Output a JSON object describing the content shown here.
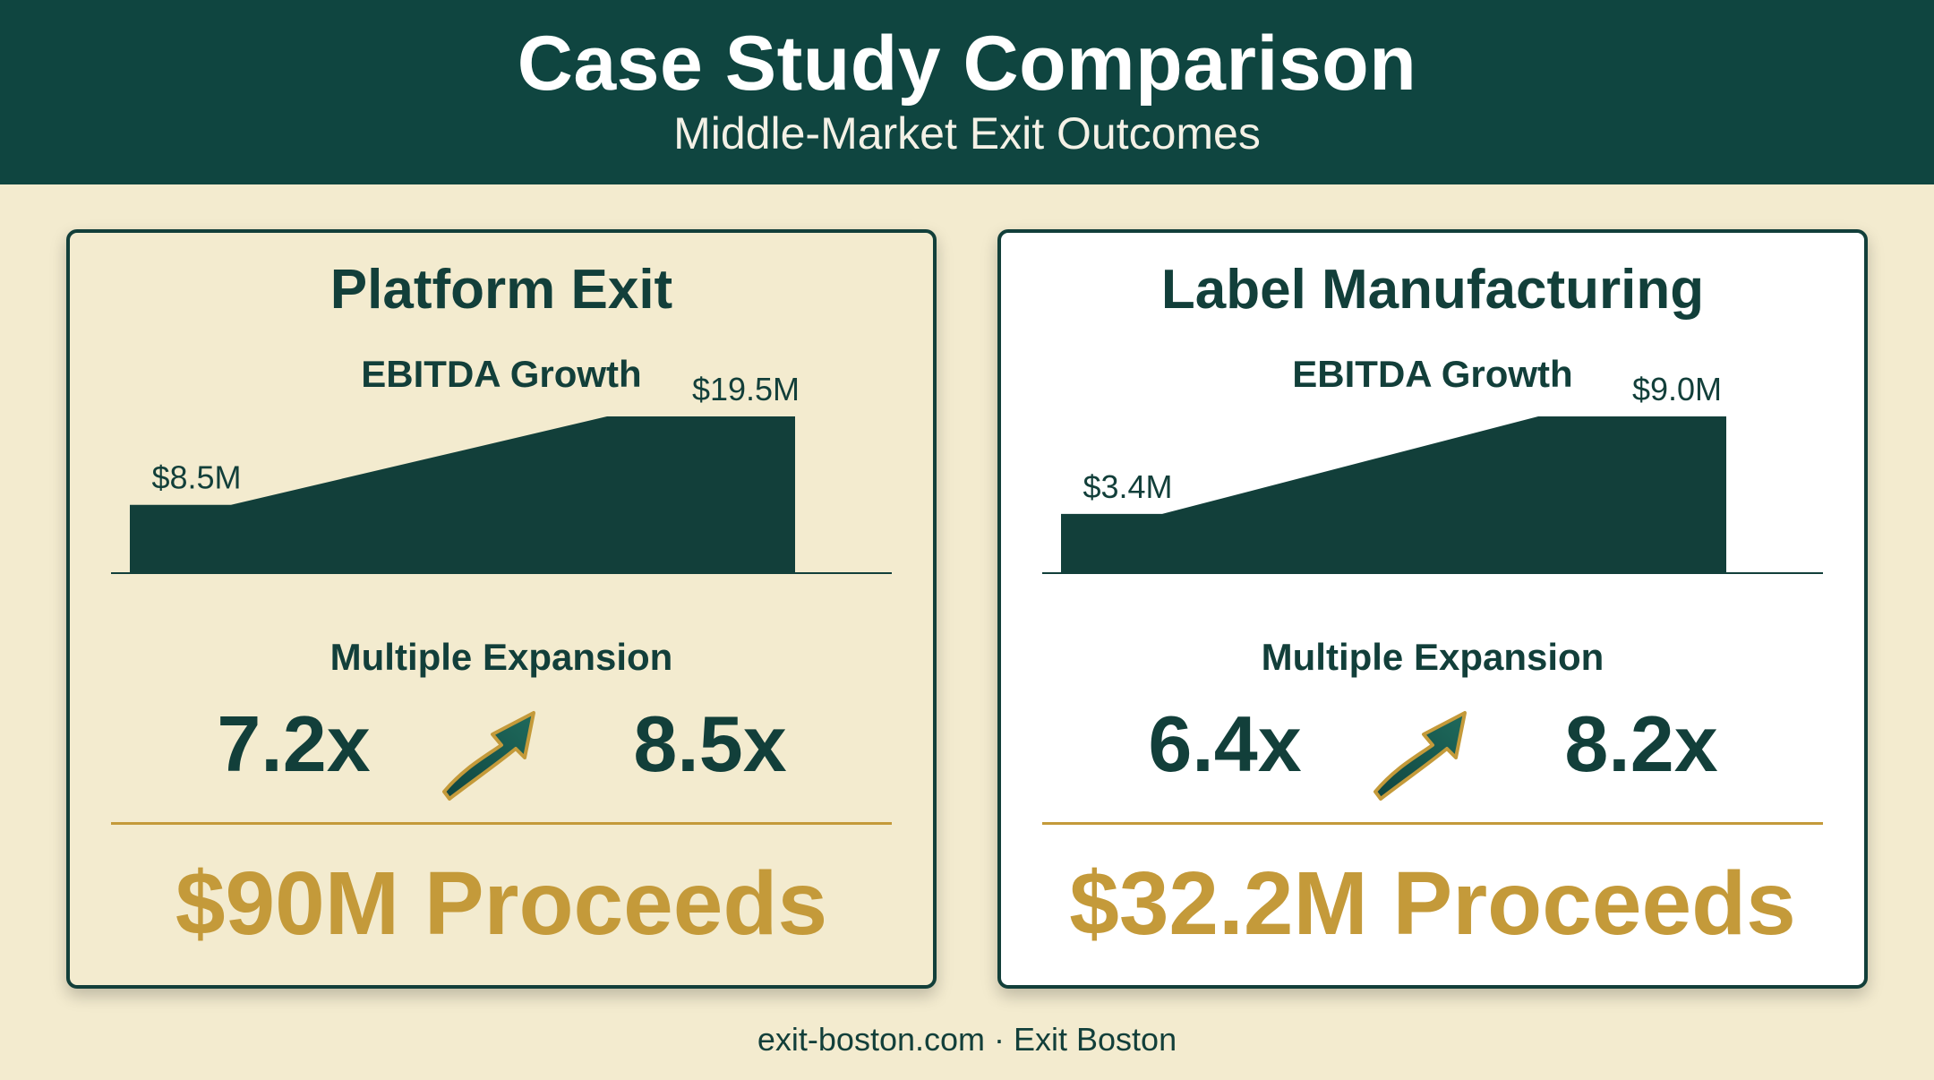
{
  "header": {
    "title": "Case Study Comparison",
    "subtitle": "Middle-Market Exit Outcomes"
  },
  "cards": [
    {
      "title": "Platform Exit",
      "ebitda_label": "EBITDA Growth",
      "ebitda_start_label": "$8.5M",
      "ebitda_end_label": "$19.5M",
      "multiple_label": "Multiple Expansion",
      "multiple_from": "7.2x",
      "multiple_to": "8.5x",
      "proceeds": "$90M Proceeds"
    },
    {
      "title": "Label Manufacturing",
      "ebitda_label": "EBITDA Growth",
      "ebitda_start_label": "$3.4M",
      "ebitda_end_label": "$9.0M",
      "multiple_label": "Multiple Expansion",
      "multiple_from": "6.4x",
      "multiple_to": "8.2x",
      "proceeds": "$32.2M Proceeds"
    }
  ],
  "chart_data": [
    {
      "type": "area",
      "x": [
        "start",
        "end"
      ],
      "values": [
        8.5,
        19.5
      ],
      "ylim": [
        0,
        19.5
      ]
    },
    {
      "type": "area",
      "x": [
        "start",
        "end"
      ],
      "values": [
        3.4,
        9.0
      ],
      "ylim": [
        0,
        9.0
      ]
    }
  ],
  "footer": {
    "text": "exit-boston.com · Exit Boston"
  },
  "colors": {
    "banner": "#0f4540",
    "ink": "#123f3a",
    "gold": "#c49a3a",
    "page": "#f3ebcf"
  },
  "icons": {
    "multiple_arrow": "trend-up-arrow-icon"
  }
}
